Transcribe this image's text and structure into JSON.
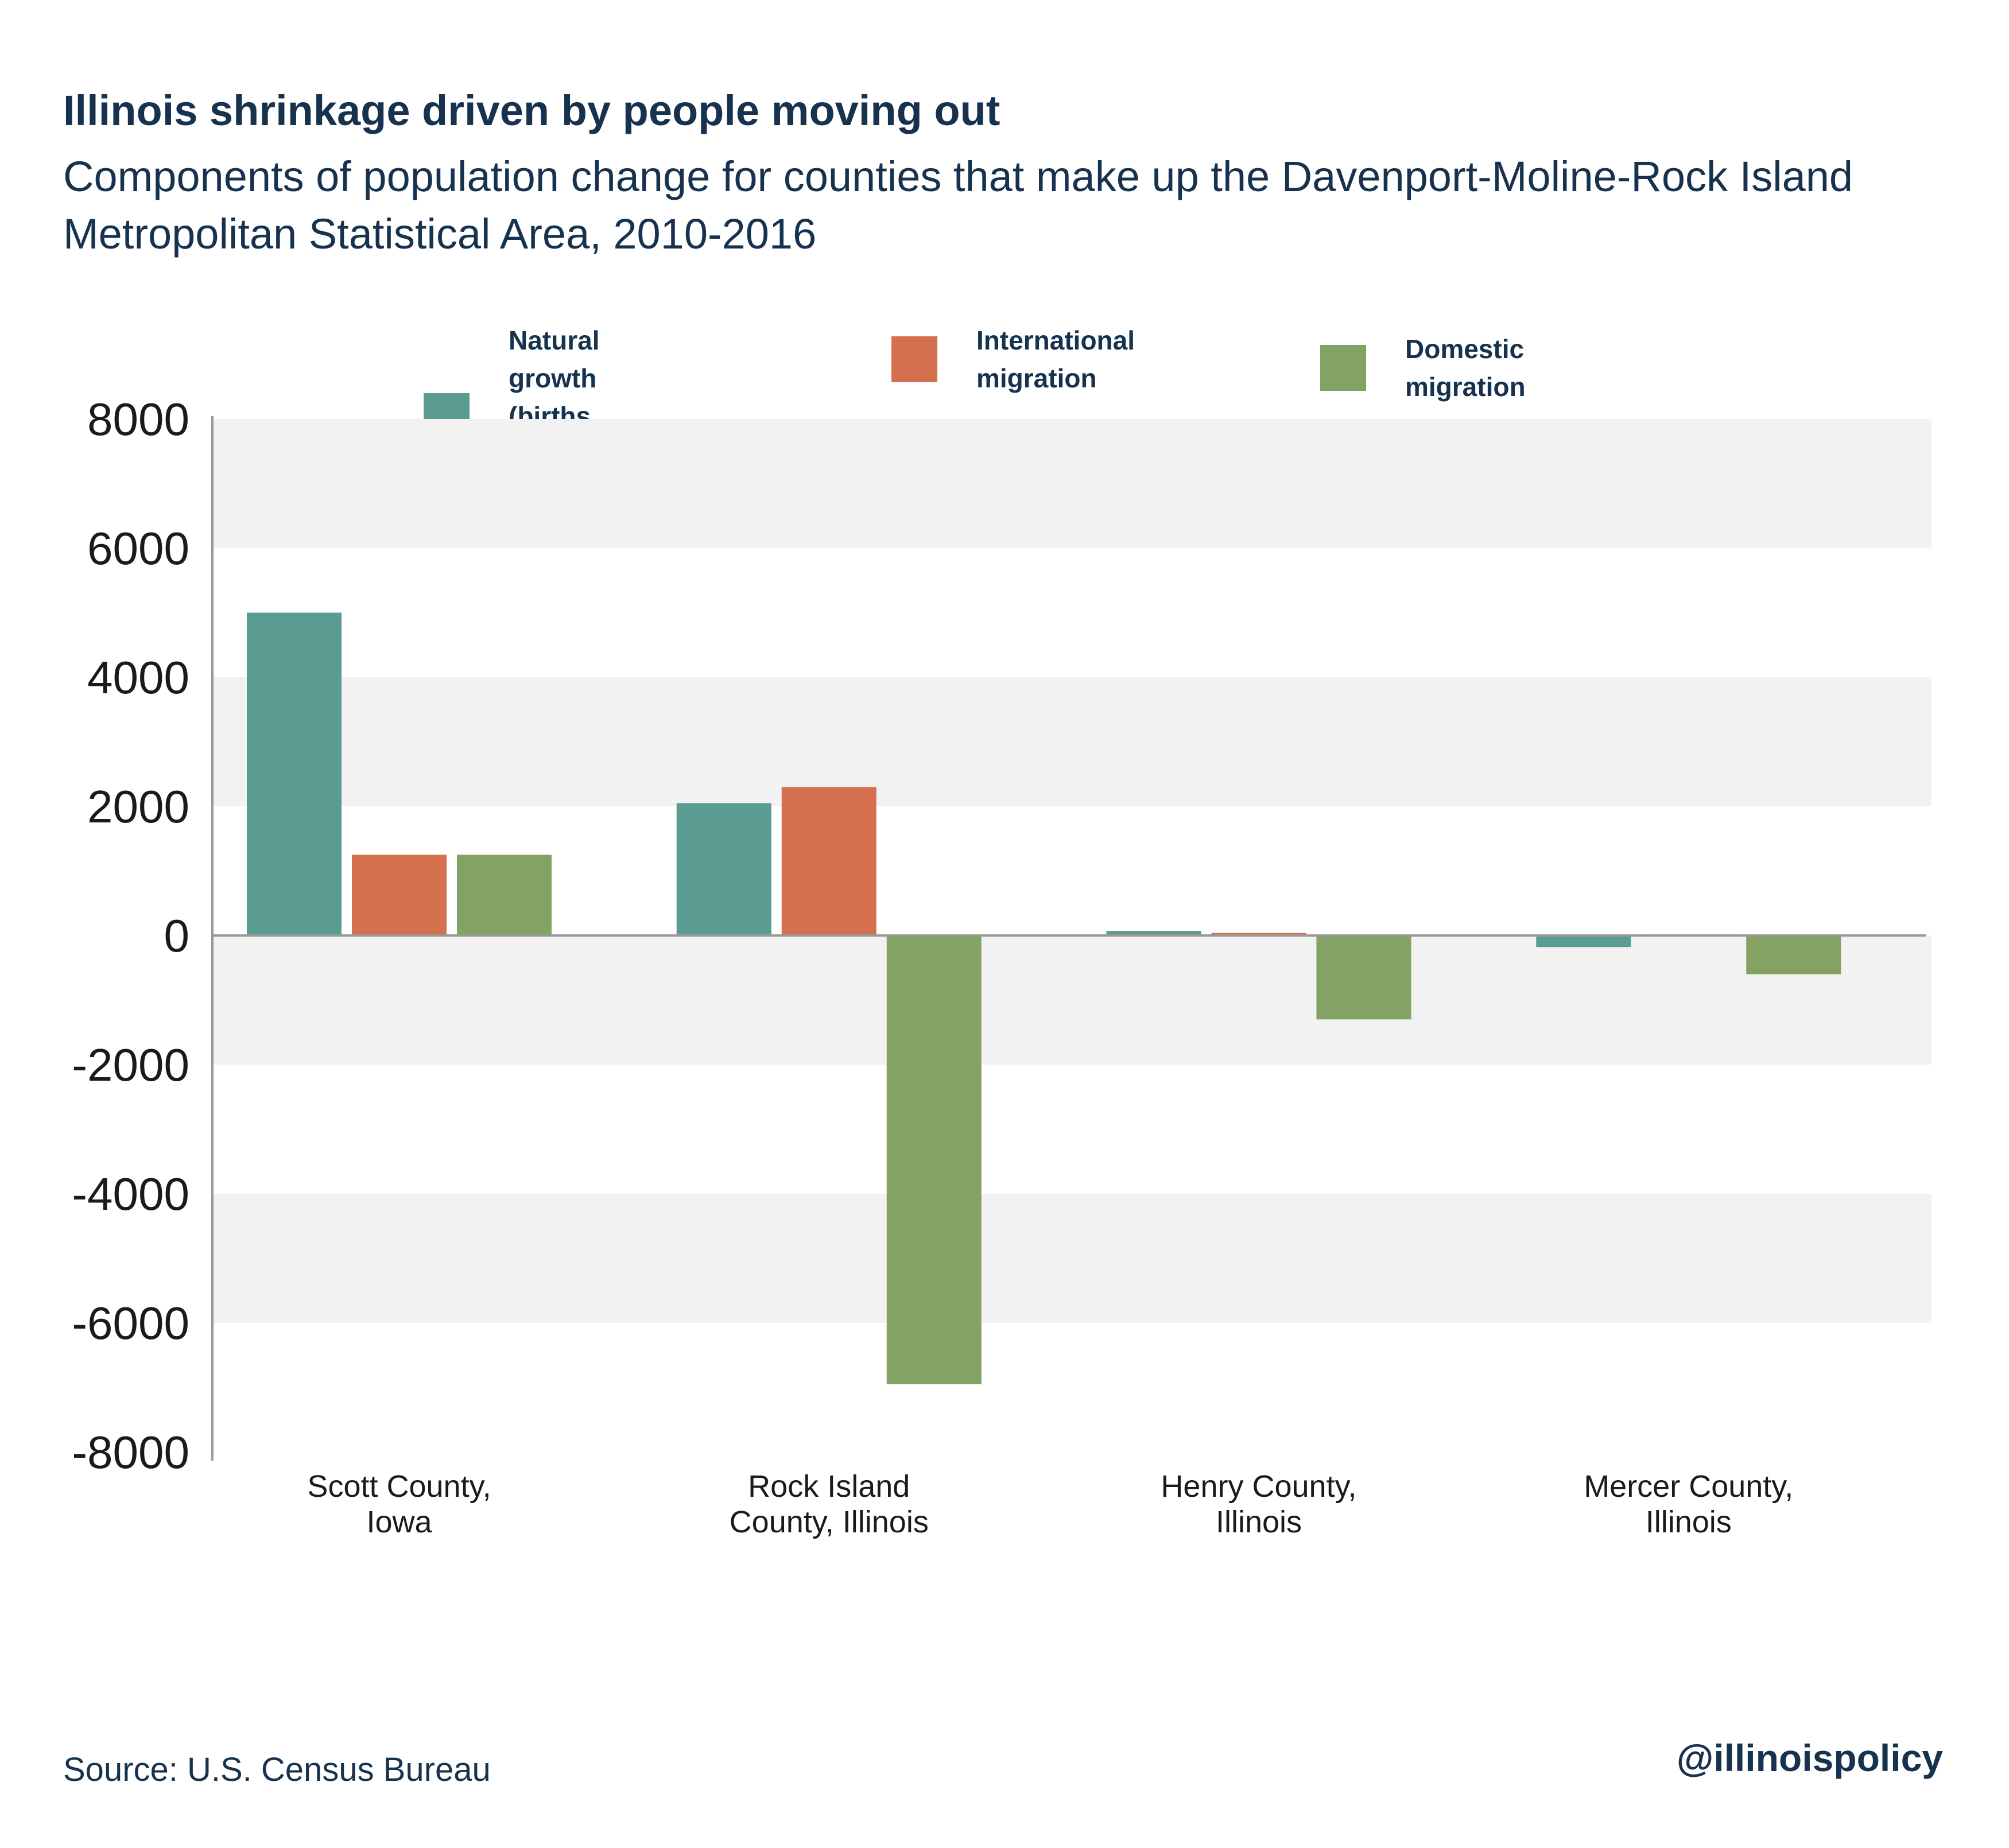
{
  "title": "Illinois shrinkage driven by people moving out",
  "subtitle": "Components of population change for counties that make up the Davenport-Moline-Rock Island Metropolitan Statistical Area, 2010-2016",
  "source": "Source: U.S. Census Bureau",
  "handle": "@illinoispolicy",
  "colors": {
    "natural": "#5a9c92",
    "international": "#d4704e",
    "domestic": "#84a263",
    "band": "#f2f2f2",
    "axis": "#999999",
    "text": "#16324f"
  },
  "chart_data": {
    "type": "bar",
    "title": "Illinois shrinkage driven by people moving out",
    "subtitle": "Components of population change for counties that make up the Davenport-Moline-Rock Island Metropolitan Statistical Area, 2010-2016",
    "categories": [
      "Scott County,\nIowa",
      "Rock Island\nCounty, Illinois",
      "Henry County,\nIllinois",
      "Mercer County,\nIllinois"
    ],
    "series": [
      {
        "name": "Natural growth\n(births minus deaths)",
        "color": "#5a9c92",
        "values": [
          5000,
          2050,
          70,
          -180
        ]
      },
      {
        "name": "International\nmigration",
        "color": "#d4704e",
        "values": [
          1250,
          2300,
          40,
          20
        ]
      },
      {
        "name": "Domestic migration",
        "color": "#84a263",
        "values": [
          1250,
          -6950,
          -1300,
          -600
        ]
      }
    ],
    "ylim": [
      -8000,
      8000
    ],
    "yticks": [
      8000,
      6000,
      4000,
      2000,
      0,
      -2000,
      -4000,
      -6000,
      -8000
    ],
    "grid": "alternating bands",
    "legend": "top-center",
    "xlabel": "",
    "ylabel": ""
  }
}
